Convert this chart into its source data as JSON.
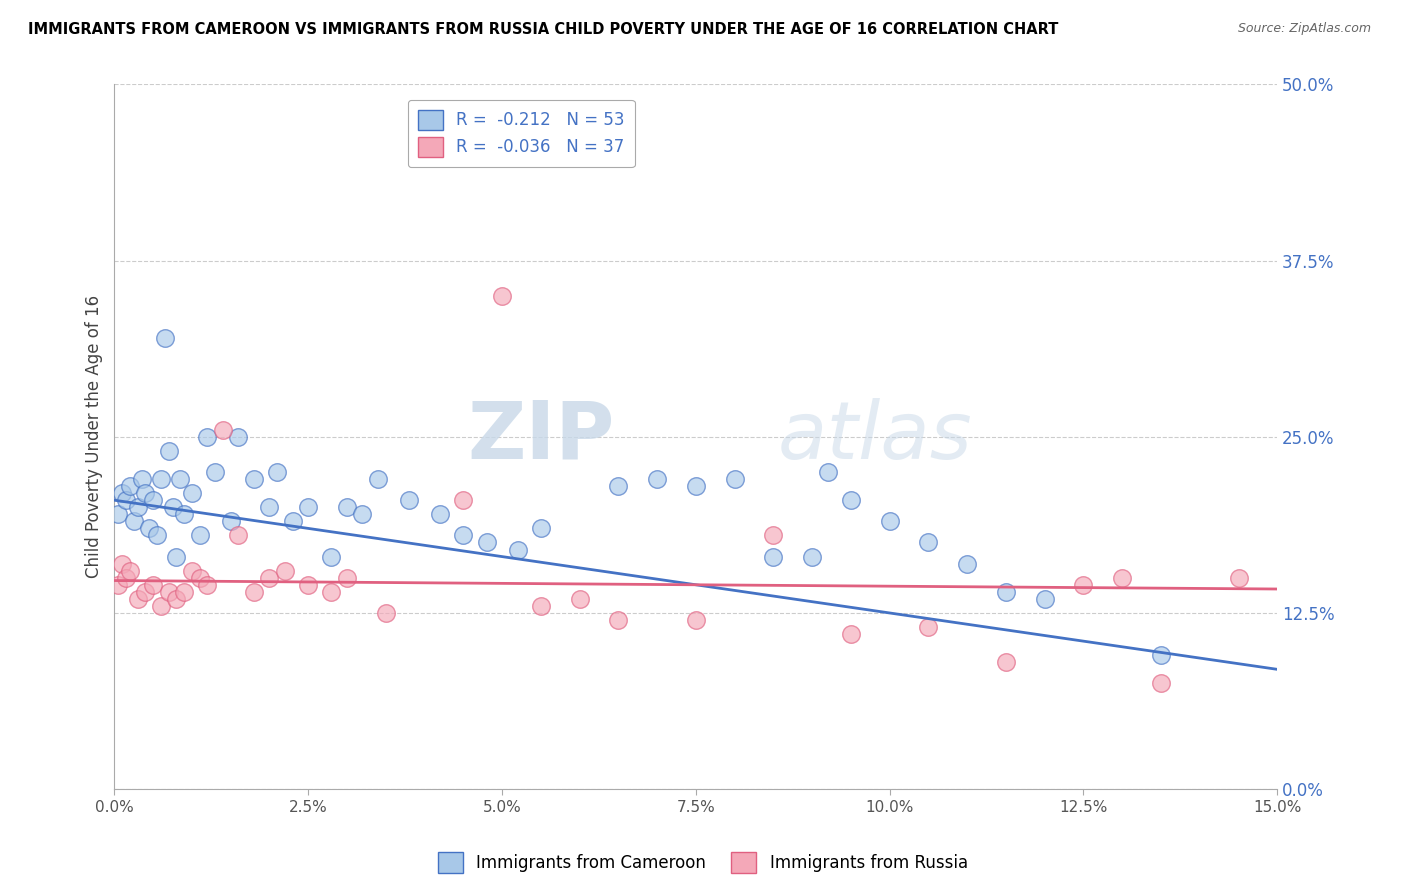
{
  "title": "IMMIGRANTS FROM CAMEROON VS IMMIGRANTS FROM RUSSIA CHILD POVERTY UNDER THE AGE OF 16 CORRELATION CHART",
  "source": "Source: ZipAtlas.com",
  "xlabel_bottom": [
    "Immigrants from Cameroon",
    "Immigrants from Russia"
  ],
  "ylabel": "Child Poverty Under the Age of 16",
  "xlim": [
    0.0,
    15.0
  ],
  "ylim": [
    0.0,
    50.0
  ],
  "xticks": [
    0.0,
    2.5,
    5.0,
    7.5,
    10.0,
    12.5,
    15.0
  ],
  "yticks_right": [
    0.0,
    12.5,
    25.0,
    37.5,
    50.0
  ],
  "cameroon_R": -0.212,
  "cameroon_N": 53,
  "russia_R": -0.036,
  "russia_N": 37,
  "cameroon_color": "#A8C8E8",
  "russia_color": "#F4A8B8",
  "cameroon_line_color": "#4472C4",
  "russia_line_color": "#E06080",
  "watermark_zip": "ZIP",
  "watermark_atlas": "atlas",
  "cameroon_x": [
    0.05,
    0.1,
    0.15,
    0.2,
    0.25,
    0.3,
    0.35,
    0.4,
    0.45,
    0.5,
    0.55,
    0.6,
    0.65,
    0.7,
    0.75,
    0.8,
    0.85,
    0.9,
    1.0,
    1.1,
    1.2,
    1.3,
    1.5,
    1.6,
    1.8,
    2.0,
    2.1,
    2.3,
    2.5,
    2.8,
    3.0,
    3.2,
    3.4,
    3.8,
    4.2,
    4.5,
    4.8,
    5.2,
    5.5,
    6.5,
    7.0,
    7.5,
    8.0,
    8.5,
    9.0,
    9.2,
    9.5,
    10.0,
    10.5,
    11.0,
    11.5,
    12.0,
    13.5
  ],
  "cameroon_y": [
    19.5,
    21.0,
    20.5,
    21.5,
    19.0,
    20.0,
    22.0,
    21.0,
    18.5,
    20.5,
    18.0,
    22.0,
    32.0,
    24.0,
    20.0,
    16.5,
    22.0,
    19.5,
    21.0,
    18.0,
    25.0,
    22.5,
    19.0,
    25.0,
    22.0,
    20.0,
    22.5,
    19.0,
    20.0,
    16.5,
    20.0,
    19.5,
    22.0,
    20.5,
    19.5,
    18.0,
    17.5,
    17.0,
    18.5,
    21.5,
    22.0,
    21.5,
    22.0,
    16.5,
    16.5,
    22.5,
    20.5,
    19.0,
    17.5,
    16.0,
    14.0,
    13.5,
    9.5
  ],
  "russia_x": [
    0.05,
    0.1,
    0.15,
    0.2,
    0.3,
    0.4,
    0.5,
    0.6,
    0.7,
    0.8,
    0.9,
    1.0,
    1.1,
    1.2,
    1.4,
    1.6,
    1.8,
    2.0,
    2.2,
    2.5,
    2.8,
    3.0,
    3.5,
    4.5,
    5.0,
    5.5,
    6.0,
    6.5,
    7.5,
    8.5,
    9.5,
    10.5,
    11.5,
    12.5,
    13.0,
    13.5,
    14.5
  ],
  "russia_y": [
    14.5,
    16.0,
    15.0,
    15.5,
    13.5,
    14.0,
    14.5,
    13.0,
    14.0,
    13.5,
    14.0,
    15.5,
    15.0,
    14.5,
    25.5,
    18.0,
    14.0,
    15.0,
    15.5,
    14.5,
    14.0,
    15.0,
    12.5,
    20.5,
    35.0,
    13.0,
    13.5,
    12.0,
    12.0,
    18.0,
    11.0,
    11.5,
    9.0,
    14.5,
    15.0,
    7.5,
    15.0
  ],
  "cam_trend_x0": 0.0,
  "cam_trend_y0": 20.5,
  "cam_trend_x1": 15.0,
  "cam_trend_y1": 8.5,
  "rus_trend_x0": 0.0,
  "rus_trend_y0": 14.8,
  "rus_trend_x1": 15.0,
  "rus_trend_y1": 14.2
}
